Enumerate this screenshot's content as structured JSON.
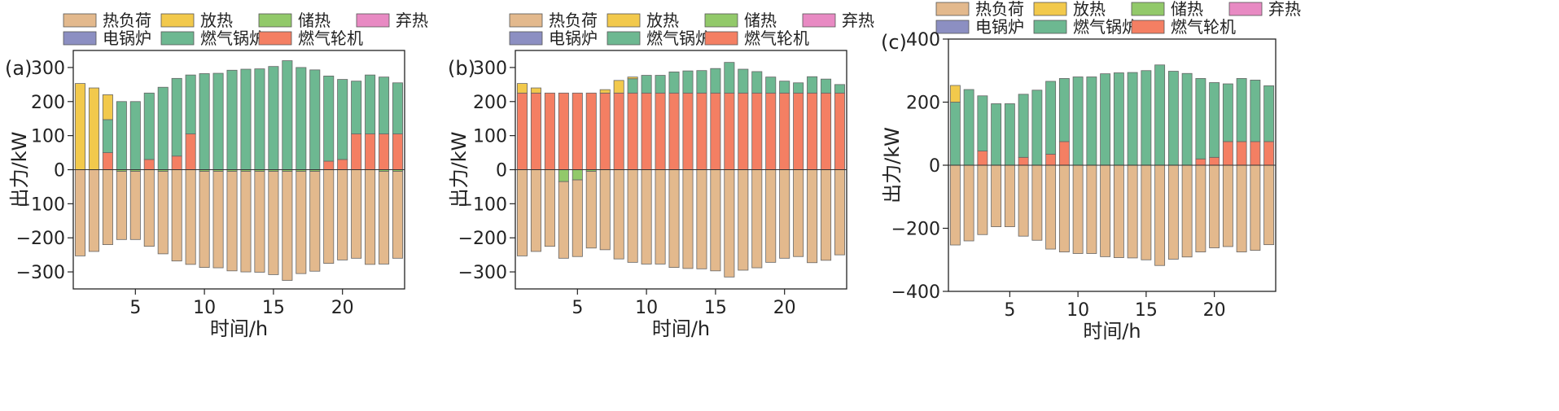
{
  "legend": [
    {
      "name": "热负荷",
      "color": "#E3B98D"
    },
    {
      "name": "放热",
      "color": "#F2C94C"
    },
    {
      "name": "储热",
      "color": "#92C96A"
    },
    {
      "name": "弃热",
      "color": "#E88AC3"
    },
    {
      "name": "电锅炉",
      "color": "#8C8FC2"
    },
    {
      "name": "燃气锅炉",
      "color": "#6DB891"
    },
    {
      "name": "燃气轮机",
      "color": "#F47F63"
    }
  ],
  "chart_data": [
    {
      "type": "bar",
      "panel_label": "(a)",
      "xlabel": "时间/h",
      "ylabel": "出力/kW",
      "ylim": [
        -350,
        350
      ],
      "yticks": [
        -300,
        -200,
        -100,
        0,
        100,
        200,
        300
      ],
      "xticks": [
        5,
        10,
        15,
        20
      ],
      "x": [
        1,
        2,
        3,
        4,
        5,
        6,
        7,
        8,
        9,
        10,
        11,
        12,
        13,
        14,
        15,
        16,
        17,
        18,
        19,
        20,
        21,
        22,
        23,
        24
      ],
      "series": [
        {
          "name": "热负荷",
          "values": [
            -253,
            -240,
            -220,
            -200,
            -200,
            -225,
            -242,
            -268,
            -278,
            -282,
            -283,
            -292,
            -295,
            -296,
            -303,
            -320,
            -300,
            -293,
            -275,
            -265,
            -260,
            -278,
            -272,
            -255
          ]
        },
        {
          "name": "燃气轮机",
          "values": [
            0,
            0,
            50,
            0,
            0,
            30,
            0,
            40,
            105,
            0,
            0,
            0,
            0,
            0,
            0,
            0,
            0,
            0,
            25,
            30,
            105,
            105,
            105,
            105
          ]
        },
        {
          "name": "燃气锅炉",
          "values": [
            0,
            0,
            97,
            200,
            200,
            195,
            242,
            228,
            173,
            282,
            283,
            292,
            295,
            296,
            303,
            320,
            300,
            293,
            250,
            235,
            155,
            173,
            167,
            150
          ]
        },
        {
          "name": "放热",
          "values": [
            253,
            240,
            73,
            0,
            0,
            0,
            0,
            0,
            0,
            0,
            0,
            0,
            0,
            0,
            0,
            0,
            0,
            0,
            0,
            0,
            0,
            0,
            0,
            0
          ]
        },
        {
          "name": "储热",
          "values": [
            0,
            0,
            0,
            -5,
            -5,
            0,
            -5,
            0,
            0,
            -5,
            -5,
            -5,
            -5,
            -5,
            -5,
            -5,
            -5,
            -5,
            0,
            0,
            0,
            0,
            -5,
            -5
          ]
        }
      ]
    },
    {
      "type": "bar",
      "panel_label": "(b)",
      "xlabel": "时间/h",
      "ylabel": "出力/kW",
      "ylim": [
        -350,
        350
      ],
      "yticks": [
        -300,
        -200,
        -100,
        0,
        100,
        200,
        300
      ],
      "xticks": [
        5,
        10,
        15,
        20
      ],
      "x": [
        1,
        2,
        3,
        4,
        5,
        6,
        7,
        8,
        9,
        10,
        11,
        12,
        13,
        14,
        15,
        16,
        17,
        18,
        19,
        20,
        21,
        22,
        23,
        24
      ],
      "series": [
        {
          "name": "热负荷",
          "values": [
            -253,
            -240,
            -225,
            -225,
            -225,
            -225,
            -235,
            -262,
            -272,
            -277,
            -277,
            -287,
            -290,
            -291,
            -297,
            -315,
            -295,
            -288,
            -272,
            -260,
            -255,
            -273,
            -266,
            -250
          ]
        },
        {
          "name": "燃气轮机",
          "values": [
            225,
            225,
            225,
            225,
            225,
            225,
            225,
            225,
            225,
            225,
            225,
            225,
            225,
            225,
            225,
            225,
            225,
            225,
            225,
            225,
            225,
            225,
            225,
            225
          ]
        },
        {
          "name": "燃气锅炉",
          "values": [
            0,
            0,
            0,
            0,
            0,
            0,
            0,
            0,
            42,
            52,
            52,
            62,
            65,
            66,
            72,
            90,
            70,
            63,
            47,
            35,
            30,
            48,
            41,
            25
          ]
        },
        {
          "name": "放热",
          "values": [
            28,
            15,
            0,
            0,
            0,
            0,
            10,
            37,
            5,
            0,
            0,
            0,
            0,
            0,
            0,
            0,
            0,
            0,
            0,
            0,
            0,
            0,
            0,
            0
          ]
        },
        {
          "name": "储热",
          "values": [
            0,
            0,
            0,
            -35,
            -30,
            -5,
            0,
            0,
            0,
            0,
            0,
            0,
            0,
            0,
            0,
            0,
            0,
            0,
            0,
            0,
            0,
            0,
            0,
            0
          ]
        }
      ]
    },
    {
      "type": "bar",
      "panel_label": "(c)",
      "xlabel": "时间/h",
      "ylabel": "出力/kW",
      "ylim": [
        -400,
        400
      ],
      "yticks": [
        -400,
        -200,
        0,
        200,
        400
      ],
      "xticks": [
        5,
        10,
        15,
        20
      ],
      "x": [
        1,
        2,
        3,
        4,
        5,
        6,
        7,
        8,
        9,
        10,
        11,
        12,
        13,
        14,
        15,
        16,
        17,
        18,
        19,
        20,
        21,
        22,
        23,
        24
      ],
      "series": [
        {
          "name": "热负荷",
          "values": [
            -253,
            -240,
            -220,
            -195,
            -195,
            -225,
            -238,
            -266,
            -275,
            -280,
            -280,
            -290,
            -293,
            -294,
            -300,
            -318,
            -298,
            -291,
            -275,
            -262,
            -258,
            -275,
            -270,
            -252
          ]
        },
        {
          "name": "燃气轮机",
          "values": [
            0,
            0,
            45,
            0,
            0,
            25,
            0,
            35,
            75,
            0,
            0,
            0,
            0,
            0,
            0,
            0,
            0,
            0,
            20,
            25,
            75,
            75,
            75,
            75
          ]
        },
        {
          "name": "燃气锅炉",
          "values": [
            200,
            240,
            175,
            195,
            195,
            200,
            238,
            231,
            200,
            280,
            280,
            290,
            293,
            294,
            300,
            318,
            298,
            291,
            255,
            237,
            183,
            200,
            195,
            177
          ]
        },
        {
          "name": "放热",
          "values": [
            53,
            0,
            0,
            0,
            0,
            0,
            0,
            0,
            0,
            0,
            0,
            0,
            0,
            0,
            0,
            0,
            0,
            0,
            0,
            0,
            0,
            0,
            0,
            0
          ]
        }
      ]
    }
  ]
}
